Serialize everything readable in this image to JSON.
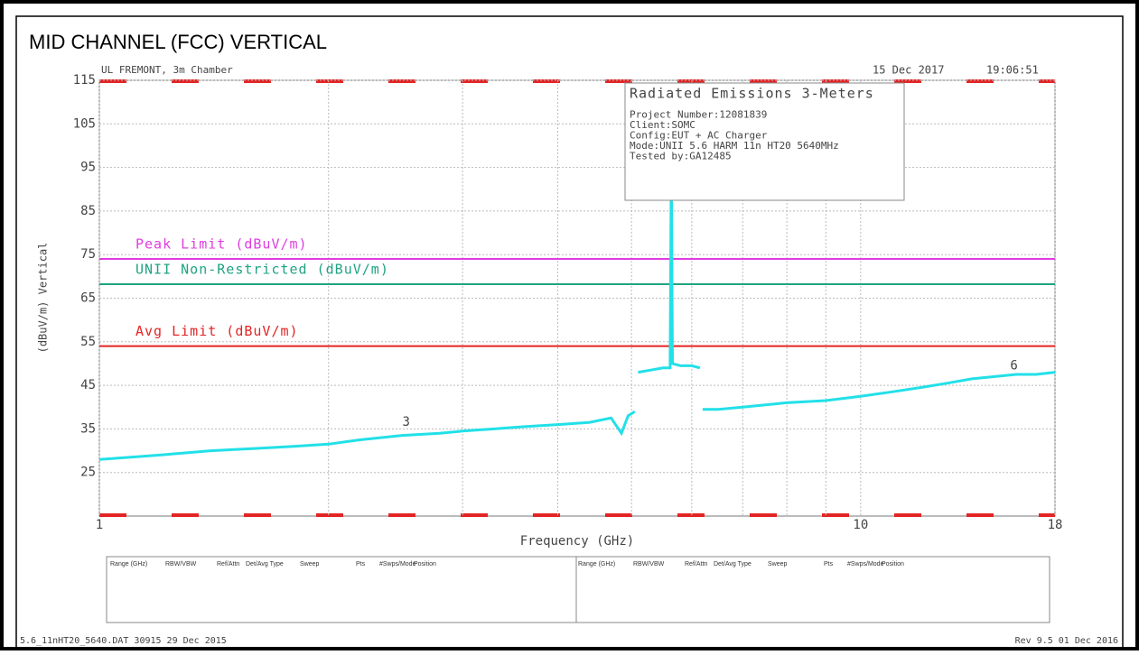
{
  "chart_data": {
    "type": "line",
    "title": "MID CHANNEL (FCC) VERTICAL",
    "header_left": "UL FREMONT, 3m Chamber",
    "header_date": "15 Dec 2017",
    "header_time": "19:06:51",
    "info": [
      "Radiated Emissions 3-Meters",
      "Project Number:12081839",
      "Client:SOMC",
      "Config:EUT + AC Charger",
      "Mode:UNII 5.6 HARM 11n HT20 5640MHz",
      "Tested by:GA12485"
    ],
    "x_label": "Frequency (GHz)",
    "y_label": "(dBuV/m) Vertical",
    "xscale": "log",
    "xlim": [
      1,
      18
    ],
    "xticks": [
      1,
      10,
      18
    ],
    "xgrid_minor": [
      2,
      3,
      4,
      5,
      6,
      7,
      8,
      9
    ],
    "ylim": [
      15,
      115
    ],
    "yticks": [
      25,
      35,
      45,
      55,
      65,
      75,
      85,
      95,
      105,
      115
    ],
    "grid": true,
    "limits": [
      {
        "name": "Peak Limit (dBuV/m)",
        "value": 74,
        "color": "#e03ce0"
      },
      {
        "name": "UNII Non-Restricted (dBuV/m)",
        "value": 68.2,
        "color": "#1fa382"
      },
      {
        "name": "Avg Limit (dBuV/m)",
        "value": 54,
        "color": "#e32424"
      }
    ],
    "series": [
      {
        "color": "#22e0e8",
        "x": [
          1,
          1.1,
          1.2,
          1.4,
          1.6,
          1.8,
          2,
          2.2,
          2.5,
          2.8,
          3,
          3.3,
          3.6,
          4,
          4.4,
          4.7,
          4.85,
          4.95,
          5.05,
          5.07,
          5.1,
          5.3,
          5.5,
          5.62,
          5.64,
          5.66,
          5.8,
          6.0,
          6.15,
          6.17,
          6.2,
          6.5,
          7,
          7.5,
          8,
          9,
          10,
          11,
          12,
          13,
          14,
          15,
          16,
          17,
          18
        ],
        "values": [
          28,
          28.5,
          29,
          30,
          30.5,
          31,
          31.5,
          32.5,
          33.5,
          34,
          34.5,
          35,
          35.5,
          36,
          36.5,
          37.5,
          34,
          38,
          39,
          null,
          48,
          48.5,
          49,
          49,
          97,
          50,
          49.5,
          49.5,
          49,
          null,
          39.5,
          39.5,
          40,
          40.5,
          41,
          41.5,
          42.5,
          43.5,
          44.5,
          45.5,
          46.5,
          47,
          47.5,
          47.5,
          48
        ]
      }
    ],
    "markers": [
      {
        "label": "3",
        "x": 2.53,
        "y": 34
      },
      {
        "label": "6",
        "x": 15.9,
        "y": 47
      }
    ],
    "table_headers": [
      "Range (GHz)",
      "RBW/VBW",
      "Ref/Attn",
      "Det/Avg Type",
      "Sweep",
      "Pts",
      "#Swps/Mode",
      "Position"
    ],
    "footer_left": "5.6_11nHT20_5640.DAT 30915 29 Dec 2015",
    "footer_right": "Rev 9.5 01 Dec 2016"
  }
}
